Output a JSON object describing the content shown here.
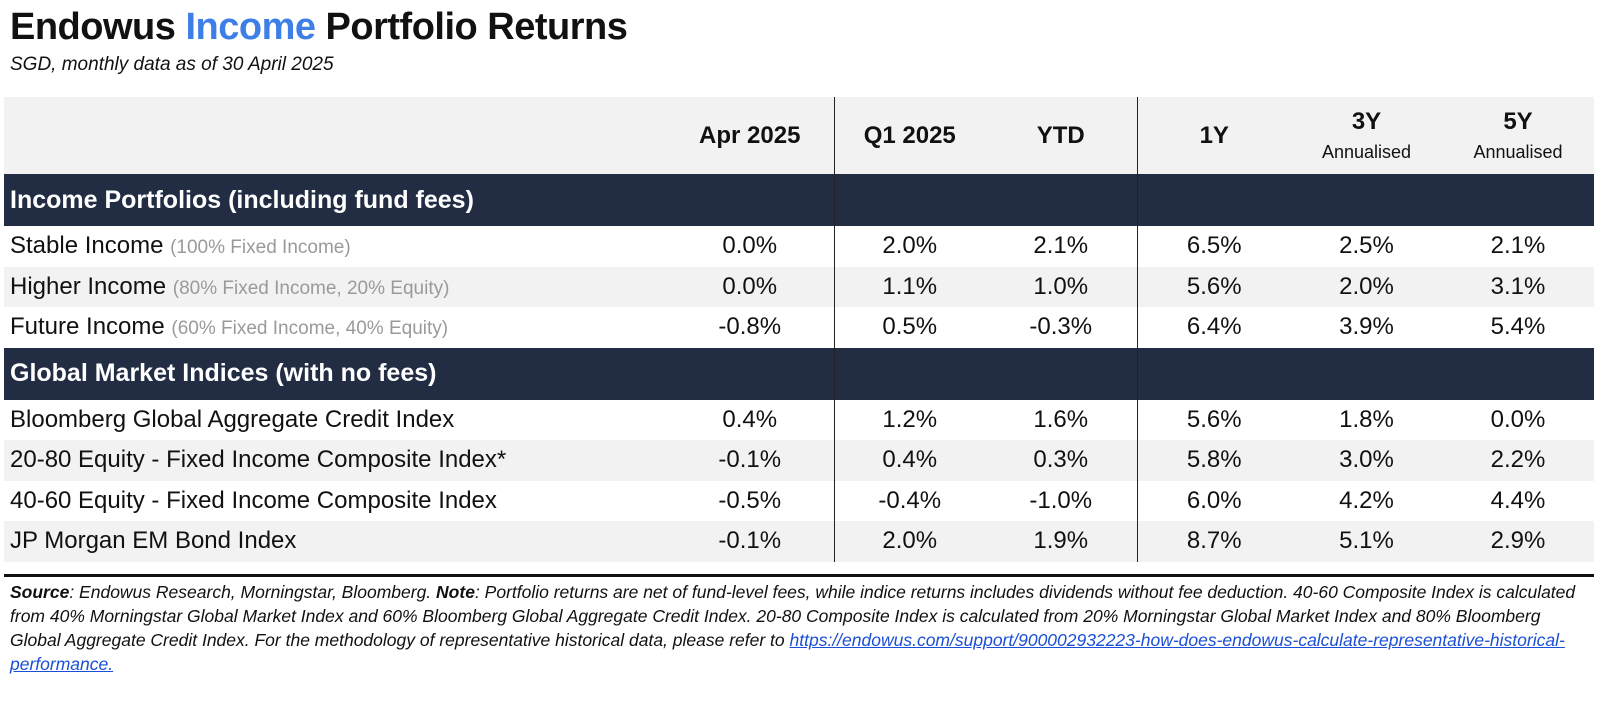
{
  "header": {
    "title_prefix": "Endowus ",
    "title_accent": "Income",
    "title_suffix": " Portfolio Returns",
    "subtitle": "SGD, monthly data as of 30 April 2025"
  },
  "colors": {
    "accent": "#3d7fe6",
    "section_bg": "#222d44",
    "stripe_bg": "#f2f2f2",
    "link": "#1a4fd6"
  },
  "chart_data": {
    "type": "table",
    "columns": [
      {
        "label": "Apr 2025",
        "sub": ""
      },
      {
        "label": "Q1 2025",
        "sub": ""
      },
      {
        "label": "YTD",
        "sub": ""
      },
      {
        "label": "1Y",
        "sub": ""
      },
      {
        "label": "3Y",
        "sub": "Annualised"
      },
      {
        "label": "5Y",
        "sub": "Annualised"
      }
    ],
    "sections": [
      {
        "title": "Income Portfolios (including fund fees)",
        "rows": [
          {
            "name": "Stable Income",
            "note": "(100% Fixed Income)",
            "values": [
              "0.0%",
              "2.0%",
              "2.1%",
              "6.5%",
              "2.5%",
              "2.1%"
            ]
          },
          {
            "name": "Higher Income",
            "note": "(80% Fixed Income, 20% Equity)",
            "values": [
              "0.0%",
              "1.1%",
              "1.0%",
              "5.6%",
              "2.0%",
              "3.1%"
            ]
          },
          {
            "name": "Future Income",
            "note": "(60% Fixed Income, 40% Equity)",
            "values": [
              "-0.8%",
              "0.5%",
              "-0.3%",
              "6.4%",
              "3.9%",
              "5.4%"
            ]
          }
        ]
      },
      {
        "title": "Global Market Indices (with no fees)",
        "rows": [
          {
            "name": "Bloomberg Global Aggregate Credit Index",
            "note": "",
            "values": [
              "0.4%",
              "1.2%",
              "1.6%",
              "5.6%",
              "1.8%",
              "0.0%"
            ]
          },
          {
            "name": "20-80 Equity - Fixed Income Composite Index*",
            "note": "",
            "values": [
              "-0.1%",
              "0.4%",
              "0.3%",
              "5.8%",
              "3.0%",
              "2.2%"
            ]
          },
          {
            "name": "40-60 Equity - Fixed Income Composite Index",
            "note": "",
            "values": [
              "-0.5%",
              "-0.4%",
              "-1.0%",
              "6.0%",
              "4.2%",
              "4.4%"
            ]
          },
          {
            "name": "JP Morgan EM Bond Index",
            "note": "",
            "values": [
              "-0.1%",
              "2.0%",
              "1.9%",
              "8.7%",
              "5.1%",
              "2.9%"
            ]
          }
        ]
      }
    ]
  },
  "footer": {
    "source_label": "Source",
    "source_text": ": Endowus Research, Morningstar, Bloomberg. ",
    "note_label": "Note",
    "note_text": ": Portfolio returns are net of fund-level fees, while indice returns includes dividends without fee deduction. 40-60 Composite Index is calculated from 40% Morningstar Global Market Index and 60% Bloomberg Global Aggregate Credit Index. 20-80 Composite Index is calculated from 20% Morningstar Global Market Index and 80% Bloomberg Global Aggregate Credit Index. For the methodology of representative historical data, please refer to ",
    "link_text": "https://endowus.com/support/900002932223-how-does-endowus-calculate-representative-historical-performance."
  }
}
